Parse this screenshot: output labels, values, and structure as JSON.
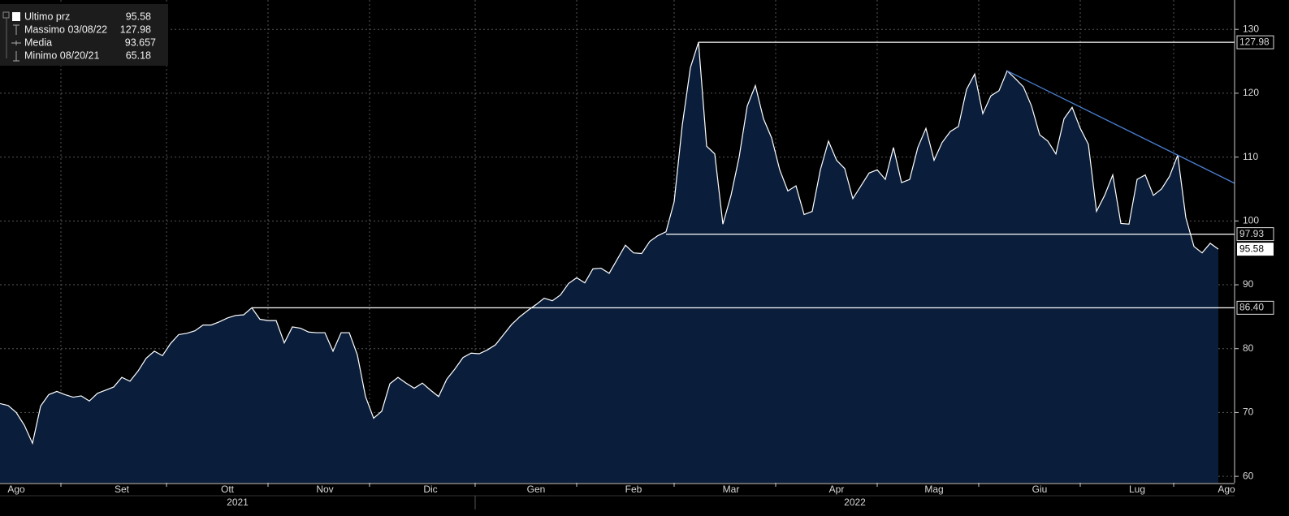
{
  "chart_data": {
    "type": "area",
    "color": "#ffffff",
    "fill_color": "#0a1e3b",
    "grid": true,
    "trend_color": "#4a7fd0",
    "legend": [
      {
        "label": "Ultimo prz",
        "value": 95.58
      },
      {
        "label": "Massimo 03/08/22",
        "value": 127.98
      },
      {
        "label": "Media",
        "value": 93.657
      },
      {
        "label": "Minimo 08/20/21",
        "value": 65.18
      }
    ],
    "levels": [
      127.98,
      97.93,
      {
        "value": 86.4,
        "label": "86.40"
      }
    ],
    "years": [
      "2021",
      "2022"
    ],
    "ylim": [
      59,
      134.6
    ],
    "yticks": [
      60,
      70,
      80,
      90,
      100,
      110,
      120,
      130
    ],
    "categories": [
      null,
      "Ago",
      null,
      null,
      null,
      null,
      null,
      null,
      null,
      null,
      null,
      null,
      null,
      null,
      "Set",
      null,
      null,
      null,
      null,
      null,
      null,
      null,
      null,
      null,
      null,
      null,
      null,
      "Ott",
      null,
      null,
      null,
      null,
      null,
      null,
      null,
      null,
      null,
      null,
      null,
      "Nov",
      null,
      null,
      null,
      null,
      null,
      null,
      null,
      null,
      null,
      null,
      null,
      null,
      "Dic",
      null,
      null,
      null,
      null,
      null,
      null,
      null,
      null,
      null,
      null,
      null,
      null,
      "Gen",
      null,
      null,
      null,
      null,
      null,
      null,
      null,
      null,
      null,
      null,
      null,
      "Feb",
      null,
      null,
      null,
      null,
      null,
      null,
      null,
      null,
      null,
      null,
      null,
      "Mar",
      null,
      null,
      null,
      null,
      null,
      null,
      null,
      null,
      null,
      null,
      null,
      null,
      "Apr",
      null,
      null,
      null,
      null,
      null,
      null,
      null,
      null,
      null,
      null,
      null,
      "Mag",
      null,
      null,
      null,
      null,
      null,
      null,
      null,
      null,
      null,
      null,
      null,
      null,
      "Giu",
      null,
      null,
      null,
      null,
      null,
      null,
      null,
      null,
      null,
      null,
      null,
      "Lug",
      null,
      null,
      null,
      null,
      null,
      null,
      null,
      null,
      null,
      null,
      "Ago"
    ],
    "values": [
      71.4,
      71.1,
      70,
      68,
      65.18,
      71,
      72.8,
      73.3,
      72.8,
      72.4,
      72.6,
      71.8,
      73,
      73.5,
      74,
      75.5,
      74.9,
      76.5,
      78.5,
      79.6,
      78.9,
      80.8,
      82.2,
      82.4,
      82.8,
      83.7,
      83.7,
      84.2,
      84.8,
      85.2,
      85.3,
      86.4,
      84.6,
      84.4,
      84.4,
      80.9,
      83.4,
      83.2,
      82.6,
      82.5,
      82.5,
      79.6,
      82.5,
      82.5,
      79,
      72.5,
      69.1,
      70.2,
      74.5,
      75.5,
      74.6,
      73.8,
      74.6,
      73.5,
      72.5,
      75.2,
      76.8,
      78.6,
      79.3,
      79.2,
      79.8,
      80.6,
      82.2,
      83.8,
      85,
      86,
      86.9,
      87.9,
      87.5,
      88.4,
      90.2,
      91.1,
      90.3,
      92.5,
      92.6,
      91.8,
      94,
      96.2,
      95,
      94.9,
      96.8,
      97.7,
      98.3,
      103,
      115,
      124,
      127.98,
      111.7,
      110.5,
      99.5,
      104,
      110,
      118,
      121.2,
      116,
      113,
      108,
      104.7,
      105.5,
      101,
      101.5,
      108,
      112.5,
      109.5,
      108.2,
      103.5,
      105.5,
      107.5,
      108,
      106.5,
      111.5,
      106,
      106.5,
      111.5,
      114.5,
      109.5,
      112.3,
      114,
      114.8,
      120.6,
      123,
      116.8,
      119.6,
      120.4,
      123.5,
      122.3,
      121,
      118,
      113.5,
      112.5,
      110.5,
      116,
      117.8,
      114.5,
      112,
      101.5,
      104,
      107.2,
      99.6,
      99.5,
      106.5,
      107.2,
      104,
      105,
      107,
      110.3,
      100.5,
      96,
      95,
      96.5,
      95.58
    ]
  }
}
